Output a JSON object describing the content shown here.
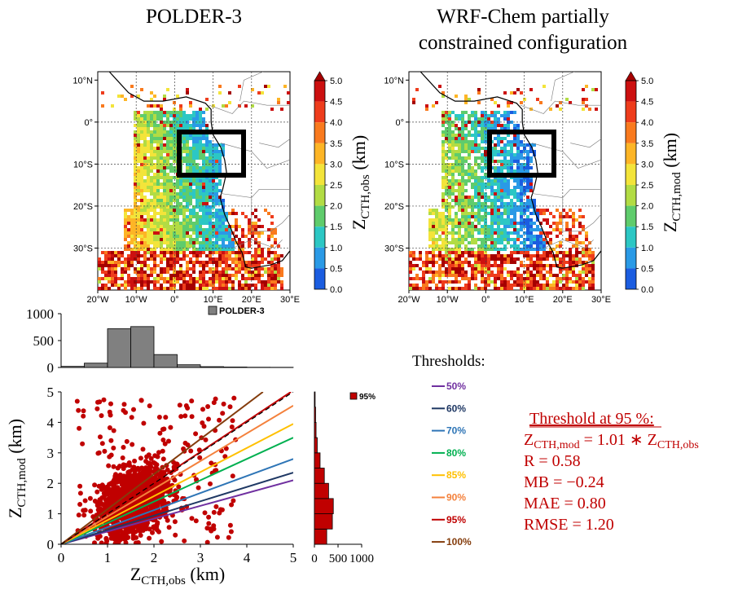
{
  "panels": [
    {
      "title": "POLDER-3",
      "colorbar_label": "Z",
      "colorbar_sub": "CTH,obs",
      "colorbar_unit": " (km)"
    },
    {
      "title": "WRF-Chem partially",
      "title2": "constrained configuration",
      "colorbar_label": "Z",
      "colorbar_sub": "CTH,mod",
      "colorbar_unit": " (km)"
    }
  ],
  "map_axes": {
    "lon_ticks": [
      "20°W",
      "10°W",
      "0°",
      "10°E",
      "20°E",
      "30°E"
    ],
    "lat_ticks": [
      "10°N",
      "0°",
      "10°S",
      "20°S",
      "30°S"
    ]
  },
  "colorbar": {
    "ticks": [
      "5.0",
      "4.5",
      "4.0",
      "3.5",
      "3.0",
      "2.5",
      "2.0",
      "1.5",
      "1.0",
      "0.5",
      "0.0"
    ],
    "colors": [
      "#a50000",
      "#cc1010",
      "#ee3c1c",
      "#f97a1e",
      "#fdb526",
      "#f3e43a",
      "#b2dc44",
      "#5fcc6c",
      "#2cc7c4",
      "#2a9ae6",
      "#1b5de0",
      "#0b1ec4"
    ]
  },
  "chart_data": [
    {
      "type": "bar",
      "legend": "POLDER-3",
      "color": "#808080",
      "bin_edges": [
        0,
        0.5,
        1.0,
        1.5,
        2.0,
        2.5,
        3.0,
        3.5,
        4.0,
        4.5,
        5.0
      ],
      "values": [
        20,
        80,
        720,
        760,
        240,
        50,
        15,
        8,
        4,
        3
      ],
      "yticks": [
        "1000",
        "500",
        "0"
      ],
      "ylim": [
        0,
        1000
      ]
    },
    {
      "type": "scatter",
      "xlabel": "Z",
      "xlabel_sub": "CTH,obs",
      "xlabel_unit": " (km)",
      "ylabel": "Z",
      "ylabel_sub": "CTH,mod",
      "ylabel_unit": " (km)",
      "xlim": [
        0,
        5
      ],
      "ylim": [
        0,
        5
      ],
      "xticks": [
        "0",
        "1",
        "2",
        "3",
        "4",
        "5"
      ],
      "yticks": [
        "0",
        "1",
        "2",
        "3",
        "4",
        "5"
      ],
      "point_color": "#c00000",
      "lines": [
        {
          "label": "50%",
          "slope": 0.42,
          "color": "#7030a0"
        },
        {
          "label": "60%",
          "slope": 0.47,
          "color": "#1f3864"
        },
        {
          "label": "70%",
          "slope": 0.56,
          "color": "#2e75b6"
        },
        {
          "label": "80%",
          "slope": 0.7,
          "color": "#00b050"
        },
        {
          "label": "85%",
          "slope": 0.79,
          "color": "#ffc000"
        },
        {
          "label": "90%",
          "slope": 0.91,
          "color": "#f4813c"
        },
        {
          "label": "95%",
          "slope": 1.01,
          "color": "#c00000"
        },
        {
          "label": "100%",
          "slope": 1.15,
          "color": "#843c0c"
        }
      ]
    },
    {
      "type": "bar",
      "orientation": "horizontal",
      "legend": "95%",
      "color": "#c00000",
      "bin_edges": [
        0,
        0.5,
        1.0,
        1.5,
        2.0,
        2.5,
        3.0,
        3.5,
        4.0,
        4.5,
        5.0
      ],
      "values": [
        260,
        380,
        400,
        300,
        210,
        120,
        60,
        35,
        25,
        15
      ],
      "xticks": [
        "0",
        "500",
        "1000"
      ],
      "xlim": [
        0,
        1000
      ]
    }
  ],
  "thresholds_title": "Thresholds:",
  "stats": {
    "title": "Threshold at 95 %:",
    "eq_left": "Z",
    "eq_left_sub": "CTH,mod",
    "eq_mid": " = 1.01 ∗ Z",
    "eq_right_sub": "CTH,obs",
    "r": "R = 0.58",
    "mb": "MB = −0.24",
    "mae": "MAE = 0.80",
    "rmse": "RMSE = 1.20"
  }
}
